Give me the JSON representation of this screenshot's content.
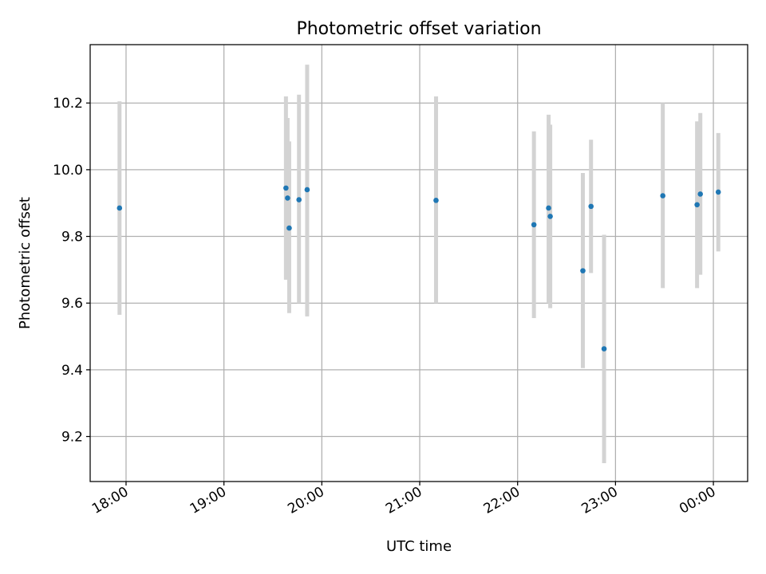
{
  "chart_data": {
    "type": "scatter",
    "title": "Photometric offset variation",
    "xlabel": "UTC time",
    "ylabel": "Photometric offset",
    "x_axis_type": "time",
    "xlim": [
      "17:38",
      "00:21"
    ],
    "ylim": [
      9.065,
      10.375
    ],
    "grid": true,
    "marker_color": "#1f77b4",
    "errorbar_color": "#d3d3d3",
    "x_ticks": [
      {
        "time": "18:00",
        "label": "18:00"
      },
      {
        "time": "19:00",
        "label": "19:00"
      },
      {
        "time": "20:00",
        "label": "20:00"
      },
      {
        "time": "21:00",
        "label": "21:00"
      },
      {
        "time": "22:00",
        "label": "22:00"
      },
      {
        "time": "23:00",
        "label": "23:00"
      },
      {
        "time": "00:00",
        "label": "00:00"
      }
    ],
    "y_ticks": [
      9.2,
      9.4,
      9.6,
      9.8,
      10.0,
      10.2
    ],
    "y_tick_labels": [
      "9.2",
      "9.4",
      "9.6",
      "9.8",
      "10.0",
      "10.2"
    ],
    "series": [
      {
        "points": [
          {
            "time": "17:56",
            "y": 9.885,
            "low": 9.565,
            "high": 10.205
          },
          {
            "time": "19:38",
            "y": 9.945,
            "low": 9.67,
            "high": 10.22
          },
          {
            "time": "19:39",
            "y": 9.915,
            "low": 9.675,
            "high": 10.155
          },
          {
            "time": "19:40",
            "y": 9.825,
            "low": 9.57,
            "high": 10.085
          },
          {
            "time": "19:46",
            "y": 9.91,
            "low": 9.6,
            "high": 10.225
          },
          {
            "time": "19:51",
            "y": 9.94,
            "low": 9.56,
            "high": 10.315
          },
          {
            "time": "21:10",
            "y": 9.908,
            "low": 9.6,
            "high": 10.22
          },
          {
            "time": "22:10",
            "y": 9.835,
            "low": 9.555,
            "high": 10.115
          },
          {
            "time": "22:19",
            "y": 9.885,
            "low": 9.6,
            "high": 10.165
          },
          {
            "time": "22:20",
            "y": 9.86,
            "low": 9.585,
            "high": 10.135
          },
          {
            "time": "22:40",
            "y": 9.697,
            "low": 9.405,
            "high": 9.99
          },
          {
            "time": "22:45",
            "y": 9.89,
            "low": 9.69,
            "high": 10.09
          },
          {
            "time": "22:53",
            "y": 9.463,
            "low": 9.12,
            "high": 9.805
          },
          {
            "time": "23:29",
            "y": 9.922,
            "low": 9.645,
            "high": 10.2
          },
          {
            "time": "23:50",
            "y": 9.895,
            "low": 9.645,
            "high": 10.145
          },
          {
            "time": "23:52",
            "y": 9.927,
            "low": 9.685,
            "high": 10.17
          },
          {
            "time": "00:03",
            "y": 9.933,
            "low": 9.755,
            "high": 10.11
          }
        ]
      }
    ]
  }
}
